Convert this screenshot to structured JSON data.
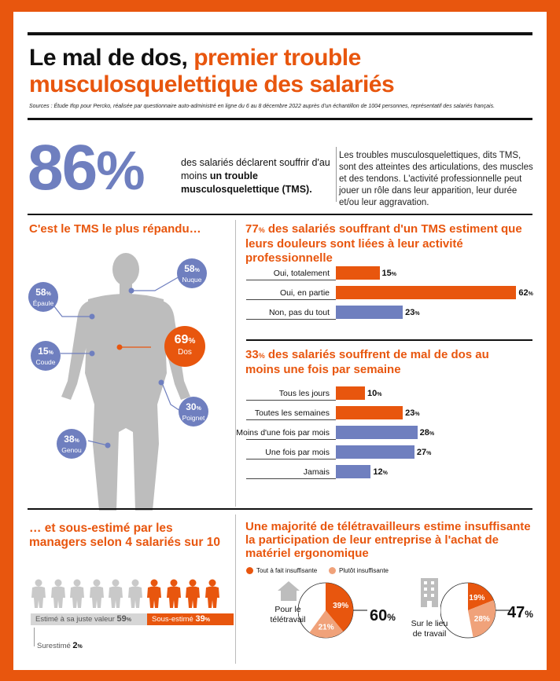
{
  "header": {
    "title_black": "Le mal de dos,",
    "title_orange_1": "premier trouble",
    "title_orange_2": "musculosquelettique des salariés",
    "sources": "Sources : Étude Ifop pour Percko, réalisée par questionnaire auto-administré en ligne du 6 au 8 décembre 2022 auprès d'un échantillon de 1004 personnes, représentatif des salariés français."
  },
  "headline": {
    "value": "86",
    "unit": "%",
    "text_before": "des salariés déclarent souffrir d'au moins ",
    "text_bold": "un trouble musculosquelettique",
    "text_after": " (TMS).",
    "description": "Les troubles musculosquelettiques, dits TMS, sont des atteintes des articulations, des muscles et des tendons. L'activité professionnelle peut jouer un rôle dans leur apparition, leur durée et/ou leur aggravation."
  },
  "body_section": {
    "title": "C'est le TMS le plus répandu…",
    "points": [
      {
        "value": "58",
        "label": "Nuque",
        "color": "#6f7fbf"
      },
      {
        "value": "58",
        "label": "Épaule",
        "color": "#6f7fbf"
      },
      {
        "value": "69",
        "label": "Dos",
        "color": "#e8560e"
      },
      {
        "value": "15",
        "label": "Coude",
        "color": "#6f7fbf"
      },
      {
        "value": "30",
        "label": "Poignet",
        "color": "#6f7fbf"
      },
      {
        "value": "38",
        "label": "Genou",
        "color": "#6f7fbf"
      }
    ],
    "pct": "%"
  },
  "managers_section": {
    "title": "… et sous-estimé par les managers selon 4 salariés sur 10",
    "figures_grey": 6,
    "figures_orange": 4,
    "right_value": {
      "label": "Estimé à sa juste valeur",
      "value": "59",
      "unit": "%"
    },
    "under": {
      "label": "Sous-estimé",
      "value": "39",
      "unit": "%"
    },
    "over": {
      "label": "Surestimé",
      "value": "2",
      "unit": "%"
    }
  },
  "telework_section": {
    "title": "Une majorité de télétravailleurs estime insuffisante la participation de leur entreprise à l'achat de matériel ergonomique",
    "legend": [
      {
        "label": "Tout à fait insuffisante",
        "color": "#e8560e"
      },
      {
        "label": "Plutôt insuffisante",
        "color": "#f0a27a"
      }
    ],
    "pies": [
      {
        "label": "Pour le télétravail",
        "icon": "house-icon",
        "a": 39,
        "b": 21,
        "total": "60"
      },
      {
        "label": "Sur le lieu de travail",
        "icon": "building-icon",
        "a": 19,
        "b": 28,
        "total": "47"
      }
    ],
    "pct": "%"
  },
  "chart_data": [
    {
      "type": "bar",
      "title_value": "77",
      "title_unit": "%",
      "title": " des salariés souffrant d'un TMS estiment que leurs douleurs sont liées à leur activité professionnelle",
      "categories": [
        "Oui, totalement",
        "Oui, en partie",
        "Non, pas du tout"
      ],
      "values": [
        15,
        62,
        23
      ],
      "colors": [
        "#e8560e",
        "#e8560e",
        "#6f7fbf"
      ],
      "unit": "%"
    },
    {
      "type": "bar",
      "title_value": "33",
      "title_unit": "%",
      "title": " des salariés souffrent de mal de dos au moins une fois par semaine",
      "categories": [
        "Tous les jours",
        "Toutes les semaines",
        "Moins d'une fois par mois",
        "Une fois par mois",
        "Jamais"
      ],
      "values": [
        10,
        23,
        28,
        27,
        12
      ],
      "colors": [
        "#e8560e",
        "#e8560e",
        "#6f7fbf",
        "#6f7fbf",
        "#6f7fbf"
      ],
      "unit": "%"
    }
  ]
}
